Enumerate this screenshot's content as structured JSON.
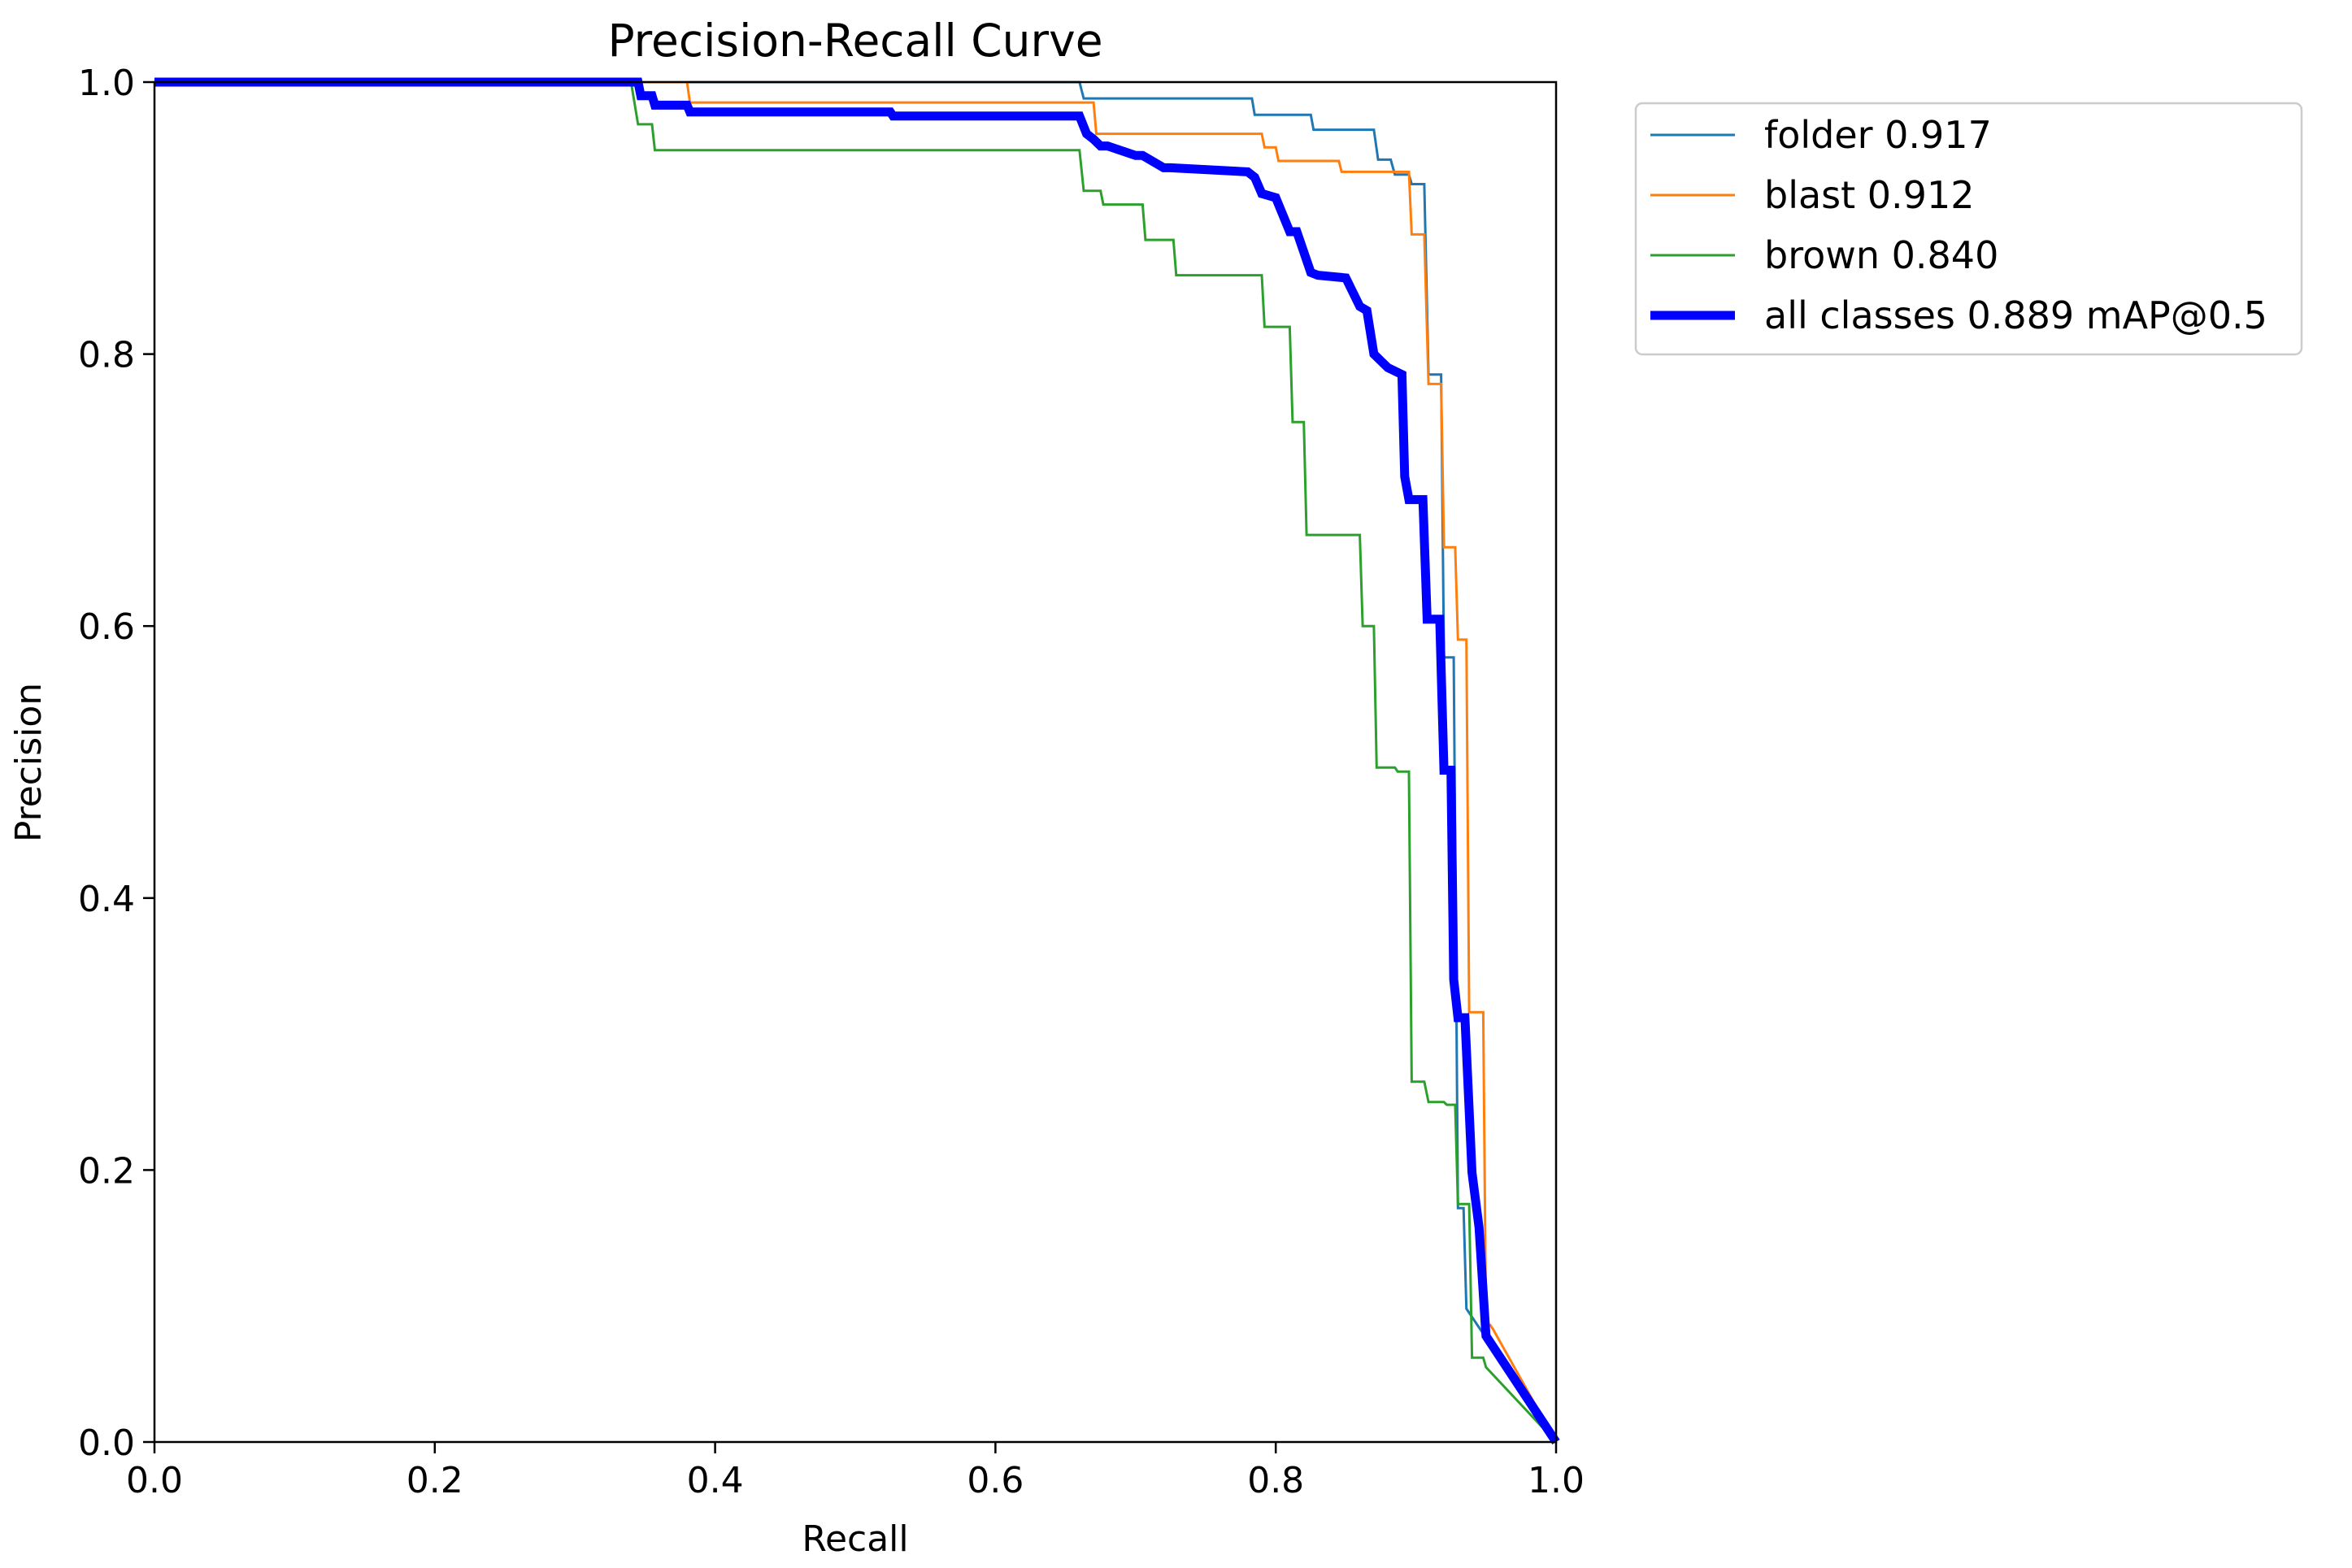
{
  "chart_data": {
    "type": "line",
    "title": "Precision-Recall Curve",
    "xlabel": "Recall",
    "ylabel": "Precision",
    "xlim": [
      0,
      1
    ],
    "ylim": [
      0,
      1
    ],
    "xticks": [
      "0.0",
      "0.2",
      "0.4",
      "0.6",
      "0.8",
      "1.0"
    ],
    "yticks": [
      "0.0",
      "0.2",
      "0.4",
      "0.6",
      "0.8",
      "1.0"
    ],
    "grid": false,
    "legend_position": "outside-top-right",
    "series": [
      {
        "name": "folder 0.917",
        "color": "#1f77b4",
        "line_weight": "thin",
        "x": [
          0.0,
          0.66,
          0.663,
          0.783,
          0.785,
          0.825,
          0.827,
          0.87,
          0.873,
          0.882,
          0.885,
          0.895,
          0.897,
          0.906,
          0.909,
          0.918,
          0.92,
          0.927,
          0.93,
          0.934,
          0.936,
          1.0
        ],
        "y": [
          1.0,
          1.0,
          0.988,
          0.988,
          0.976,
          0.976,
          0.965,
          0.965,
          0.943,
          0.943,
          0.932,
          0.932,
          0.925,
          0.925,
          0.785,
          0.785,
          0.577,
          0.577,
          0.172,
          0.172,
          0.098,
          0.0
        ]
      },
      {
        "name": "blast 0.912",
        "color": "#ff7f0e",
        "line_weight": "thin",
        "x": [
          0.0,
          0.38,
          0.382,
          0.67,
          0.672,
          0.79,
          0.792,
          0.8,
          0.802,
          0.845,
          0.847,
          0.895,
          0.897,
          0.906,
          0.909,
          0.918,
          0.92,
          0.928,
          0.93,
          0.936,
          0.938,
          0.948,
          0.95,
          0.953,
          0.955,
          1.0
        ],
        "y": [
          1.0,
          1.0,
          0.985,
          0.985,
          0.962,
          0.962,
          0.952,
          0.952,
          0.942,
          0.942,
          0.934,
          0.934,
          0.888,
          0.888,
          0.778,
          0.778,
          0.658,
          0.658,
          0.59,
          0.59,
          0.316,
          0.316,
          0.086,
          0.086,
          0.083,
          0.0
        ]
      },
      {
        "name": "brown 0.840",
        "color": "#2ca02c",
        "line_weight": "thin",
        "x": [
          0.0,
          0.34,
          0.345,
          0.355,
          0.357,
          0.66,
          0.663,
          0.675,
          0.677,
          0.685,
          0.687,
          0.705,
          0.707,
          0.727,
          0.729,
          0.79,
          0.792,
          0.81,
          0.812,
          0.82,
          0.822,
          0.86,
          0.862,
          0.87,
          0.872,
          0.885,
          0.887,
          0.895,
          0.897,
          0.906,
          0.909,
          0.92,
          0.922,
          0.928,
          0.93,
          0.938,
          0.94,
          0.948,
          0.95,
          1.0
        ],
        "y": [
          1.0,
          1.0,
          0.969,
          0.969,
          0.95,
          0.95,
          0.92,
          0.92,
          0.91,
          0.91,
          0.91,
          0.91,
          0.884,
          0.884,
          0.858,
          0.858,
          0.82,
          0.82,
          0.75,
          0.75,
          0.667,
          0.667,
          0.6,
          0.6,
          0.496,
          0.496,
          0.493,
          0.493,
          0.265,
          0.265,
          0.25,
          0.25,
          0.248,
          0.248,
          0.175,
          0.175,
          0.062,
          0.062,
          0.055,
          0.0
        ]
      },
      {
        "name": "all classes 0.889 mAP@0.5",
        "color": "#0000ff",
        "line_weight": "thick",
        "x": [
          0.0,
          0.345,
          0.347,
          0.355,
          0.357,
          0.38,
          0.382,
          0.525,
          0.527,
          0.66,
          0.665,
          0.67,
          0.675,
          0.68,
          0.7,
          0.705,
          0.72,
          0.725,
          0.78,
          0.785,
          0.79,
          0.8,
          0.81,
          0.815,
          0.825,
          0.83,
          0.85,
          0.86,
          0.865,
          0.87,
          0.875,
          0.88,
          0.89,
          0.892,
          0.895,
          0.905,
          0.908,
          0.917,
          0.92,
          0.925,
          0.927,
          0.93,
          0.935,
          0.94,
          0.945,
          0.95,
          1.0
        ],
        "y": [
          1.0,
          1.0,
          0.99,
          0.99,
          0.983,
          0.983,
          0.978,
          0.978,
          0.975,
          0.975,
          0.962,
          0.958,
          0.953,
          0.953,
          0.946,
          0.946,
          0.937,
          0.937,
          0.934,
          0.93,
          0.918,
          0.915,
          0.89,
          0.89,
          0.86,
          0.858,
          0.856,
          0.835,
          0.832,
          0.8,
          0.795,
          0.79,
          0.785,
          0.71,
          0.693,
          0.693,
          0.605,
          0.605,
          0.494,
          0.494,
          0.34,
          0.312,
          0.312,
          0.198,
          0.158,
          0.078,
          0.0
        ]
      }
    ]
  }
}
